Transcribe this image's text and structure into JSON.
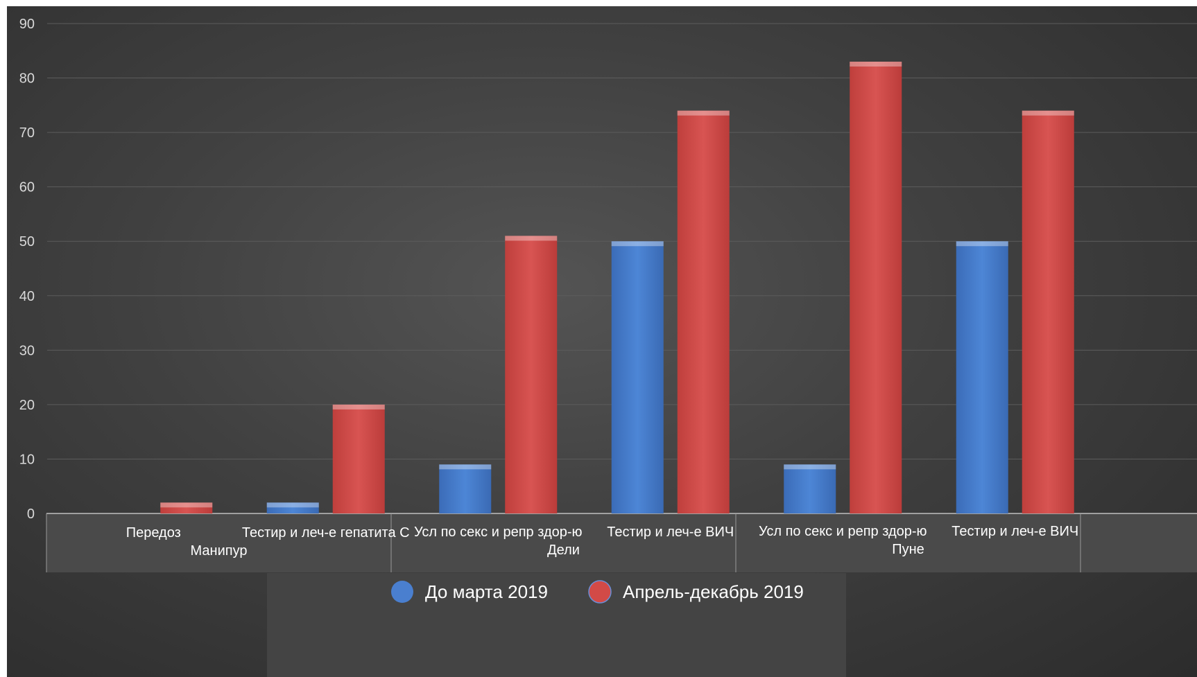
{
  "chart_data": {
    "type": "bar",
    "groups": [
      {
        "name": "Манипур",
        "categories": [
          "Передоз",
          "Тестир и леч-е гепатита С"
        ]
      },
      {
        "name": "Дели",
        "categories": [
          "Усл по секс и репр здор-ю",
          "Тестир и леч-е ВИЧ"
        ]
      },
      {
        "name": "Пуне",
        "categories": [
          "Усл по секс и репр здор-ю",
          "Тестир и леч-е ВИЧ"
        ]
      }
    ],
    "series": [
      {
        "name": "До марта 2019",
        "color": "#4a7fcf",
        "values": [
          0,
          2,
          9,
          50,
          9,
          50
        ]
      },
      {
        "name": "Апрель-декабрь 2019",
        "color": "#d24a47",
        "values": [
          2,
          20,
          51,
          74,
          83,
          74
        ]
      }
    ],
    "ylim": [
      0,
      90
    ],
    "yticks": [
      0,
      10,
      20,
      30,
      40,
      50,
      60,
      70,
      80,
      90
    ],
    "grid": true,
    "legend_position": "bottom"
  }
}
